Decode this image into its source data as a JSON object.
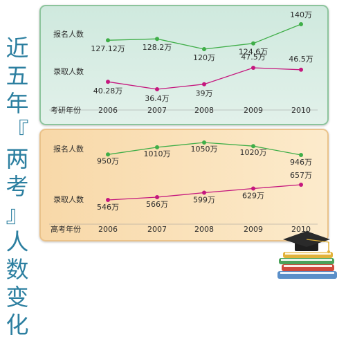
{
  "side_title": [
    "近",
    "五",
    "年",
    "『",
    "两",
    "考",
    "』",
    "人",
    "数",
    "变",
    "化"
  ],
  "colors": {
    "applicants": "#3fae48",
    "admitted": "#c5177e",
    "top_border": "#8cc49c",
    "bottom_border": "#eac28a",
    "side_title": "#2c7fa0"
  },
  "chart_data": [
    {
      "type": "line",
      "axis_label": "考研年份",
      "categories": [
        "2006",
        "2007",
        "2008",
        "2009",
        "2010"
      ],
      "series": [
        {
          "name": "报名人数",
          "values": [
            127.12,
            128.2,
            120,
            124.6,
            140
          ],
          "labels": [
            "127.12万",
            "128.2万",
            "120万",
            "124.6万",
            "140万"
          ]
        },
        {
          "name": "录取人数",
          "values": [
            40.28,
            36.4,
            39,
            47.5,
            46.5
          ],
          "labels": [
            "40.28万",
            "36.4万",
            "39万",
            "47.5万",
            "46.5万"
          ]
        }
      ]
    },
    {
      "type": "line",
      "axis_label": "高考年份",
      "categories": [
        "2006",
        "2007",
        "2008",
        "2009",
        "2010"
      ],
      "series": [
        {
          "name": "报名人数",
          "values": [
            950,
            1010,
            1050,
            1020,
            946
          ],
          "labels": [
            "950万",
            "1010万",
            "1050万",
            "1020万",
            "946万"
          ]
        },
        {
          "name": "录取人数",
          "values": [
            546,
            566,
            599,
            629,
            657
          ],
          "labels": [
            "546万",
            "566万",
            "599万",
            "629万",
            "657万"
          ]
        }
      ]
    }
  ]
}
